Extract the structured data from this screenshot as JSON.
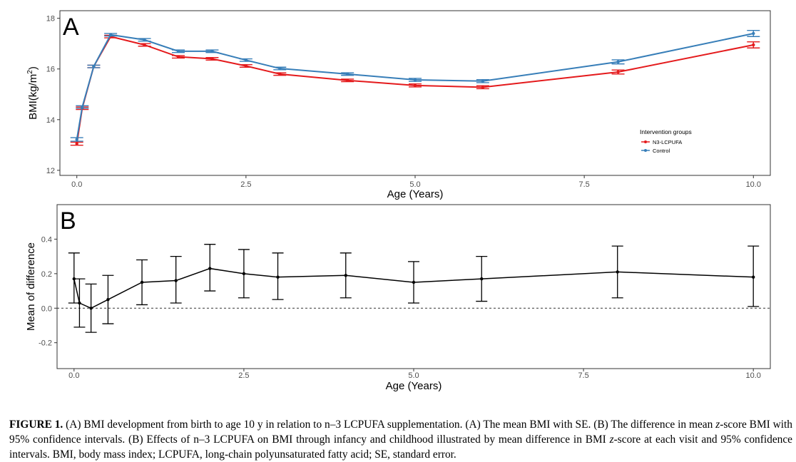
{
  "chart_data": [
    {
      "type": "line",
      "panel_label": "A",
      "xlabel": "Age (Years)",
      "ylabel": "BMI(kg/m2)",
      "ylabel_parts": {
        "base": "BMI(kg/m",
        "sup": "2",
        "close": ")"
      },
      "xlim": [
        -0.25,
        10.25
      ],
      "ylim": [
        11.8,
        18.3
      ],
      "x_ticks": [
        0.0,
        2.5,
        5.0,
        7.5,
        10.0
      ],
      "x_tick_labels": [
        "0.0",
        "2.5",
        "5.0",
        "7.5",
        "10.0"
      ],
      "y_ticks": [
        12,
        14,
        16,
        18
      ],
      "y_tick_labels": [
        "12",
        "14",
        "16",
        "18"
      ],
      "grid": false,
      "legend_title": "Intervention groups",
      "legend_position": "right",
      "x": [
        0,
        0.08,
        0.25,
        0.5,
        1,
        1.5,
        2,
        2.5,
        3,
        4,
        5,
        6,
        8,
        10
      ],
      "series": [
        {
          "name": "N3-LCPUFA",
          "color": "#e41a1c",
          "values": [
            13.05,
            14.45,
            16.1,
            17.28,
            16.95,
            16.48,
            16.4,
            16.12,
            15.8,
            15.55,
            15.35,
            15.28,
            15.88,
            16.95
          ],
          "se": [
            0.06,
            0.05,
            0.05,
            0.05,
            0.05,
            0.05,
            0.05,
            0.05,
            0.05,
            0.05,
            0.06,
            0.06,
            0.08,
            0.12
          ]
        },
        {
          "name": "Control",
          "color": "#377eb8",
          "values": [
            13.22,
            14.5,
            16.1,
            17.35,
            17.15,
            16.7,
            16.7,
            16.35,
            16.02,
            15.8,
            15.57,
            15.52,
            16.28,
            17.4
          ],
          "se": [
            0.07,
            0.05,
            0.05,
            0.05,
            0.05,
            0.05,
            0.05,
            0.05,
            0.05,
            0.05,
            0.06,
            0.06,
            0.08,
            0.12
          ]
        }
      ]
    },
    {
      "type": "line",
      "panel_label": "B",
      "xlabel": "Age (Years)",
      "ylabel": "Mean of difference",
      "xlim": [
        -0.25,
        10.25
      ],
      "ylim": [
        -0.35,
        0.6
      ],
      "x_ticks": [
        0.0,
        2.5,
        5.0,
        7.5,
        10.0
      ],
      "x_tick_labels": [
        "0.0",
        "2.5",
        "5.0",
        "7.5",
        "10.0"
      ],
      "y_ticks": [
        -0.2,
        0.0,
        0.2,
        0.4
      ],
      "y_tick_labels": [
        "-0.2",
        "0.0",
        "0.2",
        "0.4"
      ],
      "grid": false,
      "reference_line": 0.0,
      "x": [
        0,
        0.08,
        0.25,
        0.5,
        1,
        1.5,
        2,
        2.5,
        3,
        4,
        5,
        6,
        8,
        10
      ],
      "series": [
        {
          "color": "#000000",
          "values": [
            0.17,
            0.03,
            0.0,
            0.05,
            0.15,
            0.16,
            0.23,
            0.2,
            0.18,
            0.19,
            0.15,
            0.17,
            0.21,
            0.18
          ],
          "ci_low": [
            0.03,
            -0.11,
            -0.14,
            -0.09,
            0.02,
            0.03,
            0.1,
            0.06,
            0.05,
            0.06,
            0.03,
            0.04,
            0.06,
            0.01
          ],
          "ci_high": [
            0.32,
            0.17,
            0.14,
            0.19,
            0.28,
            0.3,
            0.37,
            0.34,
            0.32,
            0.32,
            0.27,
            0.3,
            0.36,
            0.36
          ]
        }
      ]
    }
  ],
  "caption": {
    "label": "FIGURE 1.",
    "segments": [
      {
        "text": " (A) BMI development from birth to age 10 y in relation to n–3 LCPUFA supplementation. (A) The mean BMI with SE. (B) The difference in mean ",
        "italic": false
      },
      {
        "text": "z",
        "italic": true
      },
      {
        "text": "-score BMI with 95% confidence intervals. (B) Effects of n–3 LCPUFA on BMI through infancy and childhood illustrated by mean difference in BMI ",
        "italic": false
      },
      {
        "text": "z",
        "italic": true
      },
      {
        "text": "-score at each visit and 95% confidence intervals. BMI, body mass index; LCPUFA, long-chain polyunsaturated fatty acid; SE, standard error.",
        "italic": false
      }
    ]
  }
}
